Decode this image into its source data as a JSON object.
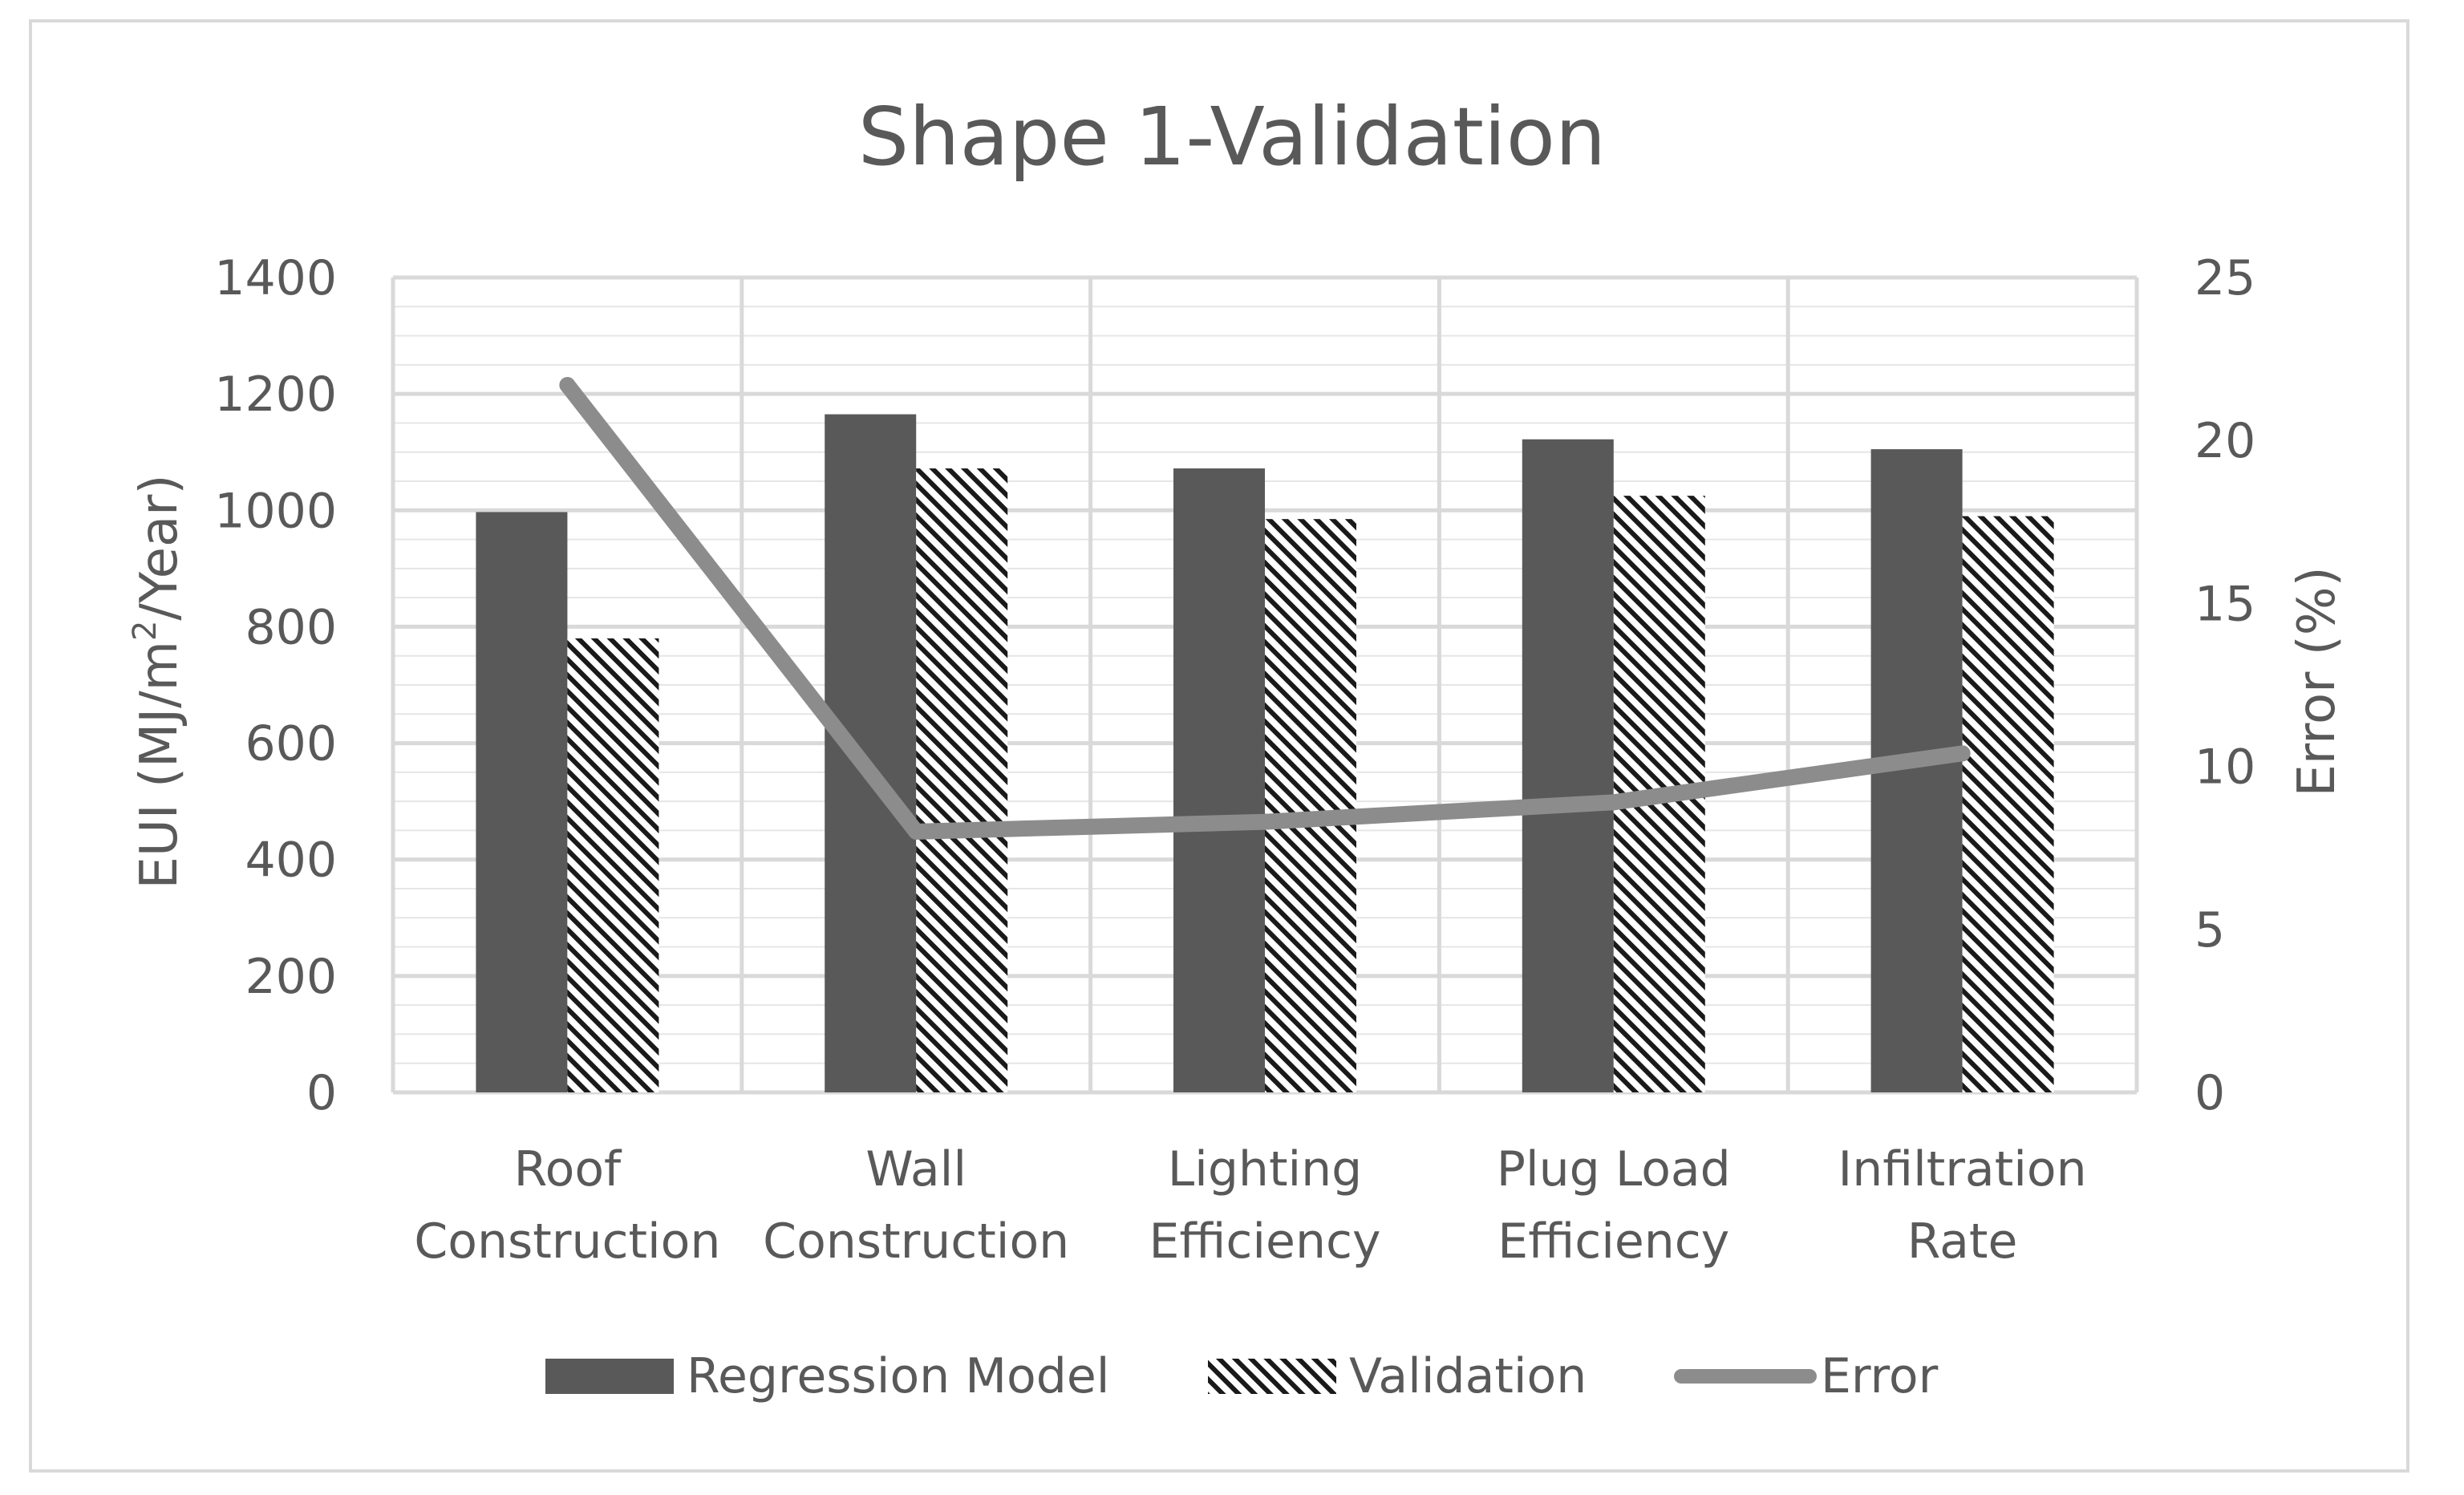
{
  "colors": {
    "regression": "#595959",
    "validation_hatch": "#1a1a1a",
    "error_line": "#8c8c8c",
    "grid_major": "#d9d9d9",
    "grid_minor": "#e6e6e6",
    "text": "#595959"
  },
  "chart_data": {
    "type": "bar",
    "title": "Shape 1-Validation",
    "categories": [
      [
        "Roof",
        "Construction"
      ],
      [
        "Wall",
        "Construction"
      ],
      [
        "Lighting",
        "Efficiency"
      ],
      [
        "Plug Load",
        "Efficiency"
      ],
      [
        "Infiltration",
        "Rate"
      ]
    ],
    "series": [
      {
        "name": "Regression Model",
        "kind": "bar",
        "axis": "left",
        "style": "solid",
        "values": [
          997,
          1165,
          1072,
          1122,
          1105
        ]
      },
      {
        "name": "Validation",
        "kind": "bar",
        "axis": "left",
        "style": "hatched",
        "values": [
          780,
          1072,
          985,
          1025,
          990
        ]
      },
      {
        "name": "Error",
        "kind": "line",
        "axis": "right",
        "values": [
          21.7,
          8.0,
          8.3,
          8.9,
          10.4
        ]
      }
    ],
    "y_left": {
      "label_prefix": "EUI (MJ/m",
      "label_sup": "2",
      "label_suffix": "/Year)",
      "min": 0,
      "max": 1400,
      "major_step": 200,
      "minor_step": 50,
      "ticks": [
        "0",
        "200",
        "400",
        "600",
        "800",
        "1000",
        "1200",
        "1400"
      ]
    },
    "y_right": {
      "label": "Error (%)",
      "min": 0,
      "max": 25,
      "major_step": 5,
      "ticks": [
        "0",
        "5",
        "10",
        "15",
        "20",
        "25"
      ]
    },
    "grid": true,
    "legend_position": "bottom"
  }
}
